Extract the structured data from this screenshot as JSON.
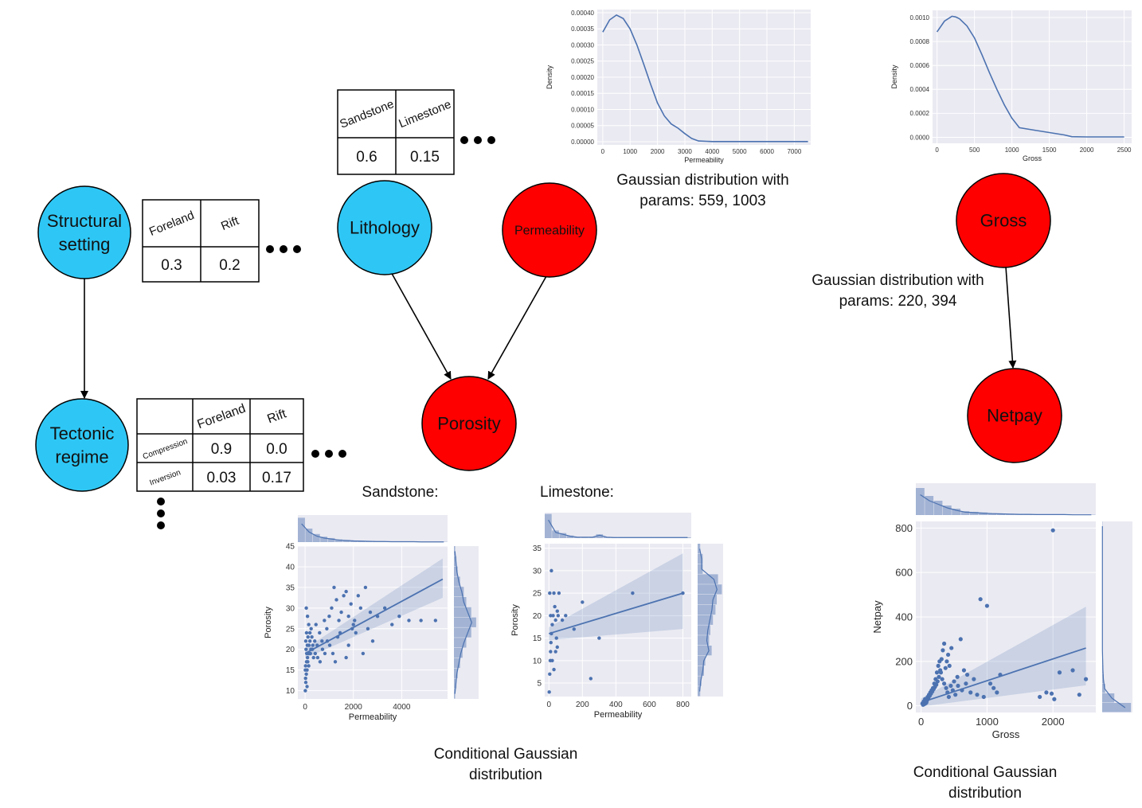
{
  "nodes": {
    "structural_setting": {
      "label": "Structural\nsetting",
      "color": "#2ec7f5"
    },
    "tectonic_regime": {
      "label": "Tectonic\nregime",
      "color": "#2ec7f5"
    },
    "lithology": {
      "label": "Lithology",
      "color": "#2ec7f5"
    },
    "permeability": {
      "label": "Permeability",
      "color": "#ff0000"
    },
    "porosity": {
      "label": "Porosity",
      "color": "#ff0000"
    },
    "gross": {
      "label": "Gross",
      "color": "#ff0000"
    },
    "netpay": {
      "label": "Netpay",
      "color": "#ff0000"
    }
  },
  "cpt_structural": {
    "headers": [
      "Foreland",
      "Rift"
    ],
    "values": [
      "0.3",
      "0.2"
    ]
  },
  "cpt_lithology": {
    "headers": [
      "Sandstone",
      "Limestone"
    ],
    "values": [
      "0.6",
      "0.15"
    ]
  },
  "cpt_tectonic": {
    "col_headers": [
      "Foreland",
      "Rift"
    ],
    "rows": [
      {
        "label": "Compression",
        "values": [
          "0.9",
          "0.0"
        ]
      },
      {
        "label": "Inversion",
        "values": [
          "0.03",
          "0.17"
        ]
      }
    ]
  },
  "ellipsis": "•••",
  "captions": {
    "perm_gauss": "Gaussian distribution with\nparams: 559, 1003",
    "gross_gauss": "Gaussian distribution with\nparams: 220, 394",
    "sandstone": "Sandstone:",
    "limestone": "Limestone:",
    "cond_gauss_porosity": "Conditional Gaussian\ndistribution",
    "cond_gauss_netpay": "Conditional Gaussian\ndistribution"
  },
  "chart_data": [
    {
      "type": "line",
      "xlabel": "Permeability",
      "ylabel": "Density",
      "xticks": [
        "0",
        "1000",
        "2000",
        "3000",
        "4000",
        "5000",
        "6000",
        "7000"
      ],
      "yticks": [
        "0.00000",
        "0.00005",
        "0.00010",
        "0.00015",
        "0.00020",
        "0.00025",
        "0.00030",
        "0.00035",
        "0.00040"
      ],
      "xlim": [
        -200,
        7600
      ],
      "ylim": [
        -1e-05,
        0.00041
      ],
      "x": [
        0,
        250,
        500,
        750,
        1000,
        1250,
        1500,
        1750,
        2000,
        2250,
        2500,
        2750,
        3000,
        3250,
        3500,
        4000,
        5000,
        6000,
        7000,
        7500
      ],
      "y": [
        0.00034,
        0.000378,
        0.000393,
        0.000382,
        0.00035,
        0.0003,
        0.00024,
        0.000178,
        0.00012,
        8e-05,
        5.5e-05,
        4.2e-05,
        2.5e-05,
        1e-05,
        2e-06,
        5e-07,
        5e-07,
        5e-07,
        5e-07,
        5e-07
      ],
      "grid": true
    },
    {
      "type": "line",
      "xlabel": "Gross",
      "ylabel": "Density",
      "xticks": [
        "0",
        "500",
        "1000",
        "1500",
        "2000",
        "2500"
      ],
      "yticks": [
        "0.0000",
        "0.0002",
        "0.0004",
        "0.0006",
        "0.0008",
        "0.0010"
      ],
      "xlim": [
        -60,
        2600
      ],
      "ylim": [
        -5e-05,
        0.00106
      ],
      "x": [
        0,
        100,
        200,
        250,
        300,
        400,
        500,
        600,
        700,
        800,
        900,
        1000,
        1100,
        1300,
        1500,
        1700,
        1800,
        2000,
        2300,
        2500
      ],
      "y": [
        0.00088,
        0.00097,
        0.00101,
        0.001005,
        0.00099,
        0.00093,
        0.00083,
        0.00069,
        0.00054,
        0.0004,
        0.00027,
        0.00016,
        8e-05,
        6e-05,
        4e-05,
        2e-05,
        5e-06,
        3e-06,
        3e-06,
        3e-06
      ],
      "grid": true
    },
    {
      "type": "scatter",
      "xlabel": "Permeability",
      "ylabel": "Porosity",
      "xticks": [
        "0",
        "2000",
        "4000"
      ],
      "yticks": [
        "10",
        "15",
        "20",
        "25",
        "30",
        "35",
        "40",
        "45"
      ],
      "xlim": [
        -300,
        5900
      ],
      "ylim": [
        8,
        45
      ],
      "points": [
        [
          10,
          10
        ],
        [
          30,
          12
        ],
        [
          50,
          14
        ],
        [
          80,
          15
        ],
        [
          20,
          16
        ],
        [
          60,
          17
        ],
        [
          100,
          18
        ],
        [
          150,
          19
        ],
        [
          40,
          20
        ],
        [
          90,
          21
        ],
        [
          200,
          22
        ],
        [
          120,
          23
        ],
        [
          60,
          24
        ],
        [
          250,
          25
        ],
        [
          300,
          20
        ],
        [
          350,
          18
        ],
        [
          400,
          22
        ],
        [
          500,
          21
        ],
        [
          80,
          11
        ],
        [
          20,
          13
        ],
        [
          150,
          16
        ],
        [
          220,
          19
        ],
        [
          280,
          23
        ],
        [
          450,
          26
        ],
        [
          600,
          24
        ],
        [
          700,
          22
        ],
        [
          800,
          27
        ],
        [
          900,
          25
        ],
        [
          1000,
          28
        ],
        [
          1100,
          30
        ],
        [
          1200,
          35
        ],
        [
          1300,
          32
        ],
        [
          1400,
          27
        ],
        [
          1500,
          29
        ],
        [
          1600,
          33
        ],
        [
          1700,
          34
        ],
        [
          1800,
          28
        ],
        [
          1900,
          31
        ],
        [
          2000,
          26
        ],
        [
          2100,
          24
        ],
        [
          2200,
          33
        ],
        [
          2300,
          30
        ],
        [
          2500,
          35
        ],
        [
          2600,
          25
        ],
        [
          2700,
          29
        ],
        [
          3000,
          28
        ],
        [
          3300,
          30
        ],
        [
          3600,
          26
        ],
        [
          3900,
          28
        ],
        [
          4300,
          27
        ],
        [
          4800,
          27
        ],
        [
          5400,
          27
        ],
        [
          50,
          30
        ],
        [
          100,
          28
        ],
        [
          150,
          26
        ],
        [
          200,
          24
        ],
        [
          30,
          22
        ],
        [
          70,
          19
        ],
        [
          110,
          17
        ],
        [
          10,
          15
        ],
        [
          160,
          21
        ],
        [
          240,
          20
        ],
        [
          320,
          21
        ],
        [
          420,
          19
        ],
        [
          520,
          18
        ],
        [
          620,
          17
        ],
        [
          720,
          20
        ],
        [
          820,
          19
        ],
        [
          920,
          22
        ],
        [
          1020,
          21
        ],
        [
          1150,
          19
        ],
        [
          1250,
          17
        ],
        [
          1350,
          23
        ],
        [
          1450,
          24
        ],
        [
          1700,
          18
        ],
        [
          1800,
          21
        ],
        [
          1950,
          25
        ],
        [
          2050,
          27
        ],
        [
          2400,
          19
        ],
        [
          2800,
          22
        ]
      ],
      "regression": {
        "x": [
          0,
          5700
        ],
        "y": [
          19,
          37
        ]
      },
      "grid": true
    },
    {
      "type": "scatter",
      "xlabel": "Permeability",
      "ylabel": "Porosity",
      "xticks": [
        "0",
        "200",
        "400",
        "600",
        "800"
      ],
      "yticks": [
        "5",
        "10",
        "15",
        "20",
        "25",
        "30",
        "35"
      ],
      "xlim": [
        -25,
        850
      ],
      "ylim": [
        2,
        36
      ],
      "points": [
        [
          2,
          3
        ],
        [
          5,
          7
        ],
        [
          8,
          10
        ],
        [
          10,
          12
        ],
        [
          12,
          14
        ],
        [
          15,
          16
        ],
        [
          20,
          18
        ],
        [
          25,
          20
        ],
        [
          30,
          25
        ],
        [
          35,
          22
        ],
        [
          40,
          19
        ],
        [
          45,
          15
        ],
        [
          50,
          13
        ],
        [
          55,
          20
        ],
        [
          60,
          25
        ],
        [
          15,
          30
        ],
        [
          20,
          10
        ],
        [
          30,
          8
        ],
        [
          40,
          12
        ],
        [
          50,
          21
        ],
        [
          80,
          19
        ],
        [
          100,
          20
        ],
        [
          150,
          17
        ],
        [
          200,
          23
        ],
        [
          250,
          6
        ],
        [
          300,
          15
        ],
        [
          500,
          25
        ],
        [
          800,
          25
        ],
        [
          5,
          25
        ],
        [
          10,
          20
        ]
      ],
      "regression": {
        "x": [
          0,
          800
        ],
        "y": [
          16,
          25
        ]
      },
      "grid": true
    },
    {
      "type": "scatter",
      "xlabel": "Gross",
      "ylabel": "Netpay",
      "xticks": [
        "0",
        "1000",
        "2000"
      ],
      "yticks": [
        "0",
        "200",
        "400",
        "600",
        "800"
      ],
      "xlim": [
        -80,
        2650
      ],
      "ylim": [
        -30,
        830
      ],
      "points": [
        [
          20,
          10
        ],
        [
          40,
          20
        ],
        [
          60,
          30
        ],
        [
          80,
          15
        ],
        [
          100,
          40
        ],
        [
          120,
          50
        ],
        [
          140,
          60
        ],
        [
          160,
          70
        ],
        [
          180,
          80
        ],
        [
          200,
          100
        ],
        [
          220,
          120
        ],
        [
          240,
          150
        ],
        [
          260,
          180
        ],
        [
          280,
          200
        ],
        [
          300,
          150
        ],
        [
          320,
          120
        ],
        [
          350,
          100
        ],
        [
          380,
          80
        ],
        [
          400,
          60
        ],
        [
          420,
          40
        ],
        [
          450,
          90
        ],
        [
          500,
          110
        ],
        [
          550,
          130
        ],
        [
          600,
          300
        ],
        [
          650,
          160
        ],
        [
          700,
          140
        ],
        [
          800,
          120
        ],
        [
          900,
          480
        ],
        [
          1000,
          450
        ],
        [
          1100,
          80
        ],
        [
          1200,
          140
        ],
        [
          1800,
          40
        ],
        [
          1900,
          60
        ],
        [
          2000,
          790
        ],
        [
          2100,
          150
        ],
        [
          2300,
          160
        ],
        [
          2400,
          50
        ],
        [
          2500,
          120
        ],
        [
          30,
          5
        ],
        [
          50,
          8
        ],
        [
          70,
          12
        ],
        [
          90,
          25
        ],
        [
          110,
          35
        ],
        [
          130,
          45
        ],
        [
          150,
          55
        ],
        [
          170,
          65
        ],
        [
          190,
          75
        ],
        [
          210,
          85
        ],
        [
          230,
          95
        ],
        [
          250,
          110
        ],
        [
          270,
          130
        ],
        [
          290,
          160
        ],
        [
          310,
          210
        ],
        [
          330,
          250
        ],
        [
          350,
          280
        ],
        [
          370,
          170
        ],
        [
          390,
          200
        ],
        [
          410,
          230
        ],
        [
          430,
          180
        ],
        [
          460,
          260
        ],
        [
          480,
          70
        ],
        [
          520,
          50
        ],
        [
          560,
          90
        ],
        [
          620,
          70
        ],
        [
          680,
          100
        ],
        [
          750,
          60
        ],
        [
          850,
          50
        ],
        [
          950,
          40
        ],
        [
          1050,
          100
        ],
        [
          1150,
          60
        ],
        [
          2020,
          30
        ],
        [
          1980,
          55
        ]
      ],
      "regression": {
        "x": [
          0,
          2500
        ],
        "y": [
          15,
          260
        ]
      },
      "grid": true
    }
  ]
}
